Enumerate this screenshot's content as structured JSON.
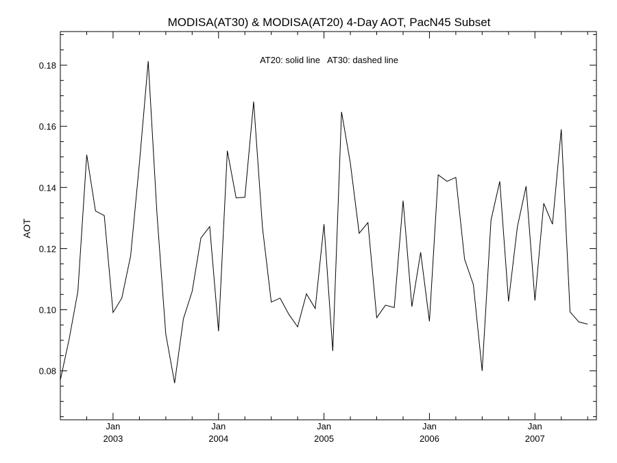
{
  "chart_data": {
    "type": "line",
    "title": "MODISA(AT30) & MODISA(AT20) 4-Day AOT, PacN45 Subset",
    "subtitle": "AT20: solid line   AT30: dashed line",
    "xlabel": "",
    "ylabel": "AOT",
    "xlim": [
      "2002-07-01",
      "2007-08-01"
    ],
    "ylim": [
      0.064,
      0.191
    ],
    "x_tick_labels": [
      {
        "month": "Jan",
        "year": "2003",
        "date": "2003-01-01"
      },
      {
        "month": "Jan",
        "year": "2004",
        "date": "2004-01-01"
      },
      {
        "month": "Jan",
        "year": "2005",
        "date": "2005-01-01"
      },
      {
        "month": "Jan",
        "year": "2006",
        "date": "2006-01-01"
      },
      {
        "month": "Jan",
        "year": "2007",
        "date": "2007-01-01"
      }
    ],
    "y_ticks": [
      0.08,
      0.1,
      0.12,
      0.14,
      0.16,
      0.18
    ],
    "y_tick_labels": [
      "0.08",
      "0.10",
      "0.12",
      "0.14",
      "0.16",
      "0.18"
    ],
    "grid": false,
    "series": [
      {
        "style": "solid",
        "color": "#000000",
        "points": [
          [
            "2002-07-01",
            0.077
          ],
          [
            "2002-08-01",
            0.0903
          ],
          [
            "2002-09-01",
            0.106
          ],
          [
            "2002-10-01",
            0.1507
          ],
          [
            "2002-11-01",
            0.1323
          ],
          [
            "2002-12-01",
            0.1308
          ],
          [
            "2003-01-01",
            0.0991
          ],
          [
            "2003-02-01",
            0.1038
          ],
          [
            "2003-03-01",
            0.1177
          ],
          [
            "2003-04-01",
            0.148
          ],
          [
            "2003-05-01",
            0.1813
          ],
          [
            "2003-06-01",
            0.1313
          ],
          [
            "2003-07-01",
            0.0921
          ],
          [
            "2003-08-01",
            0.076
          ],
          [
            "2003-09-01",
            0.097
          ],
          [
            "2003-10-01",
            0.106
          ],
          [
            "2003-11-01",
            0.1235
          ],
          [
            "2003-12-01",
            0.1272
          ],
          [
            "2004-01-01",
            0.093
          ],
          [
            "2004-02-01",
            0.152
          ],
          [
            "2004-03-01",
            0.1366
          ],
          [
            "2004-04-01",
            0.1368
          ],
          [
            "2004-05-01",
            0.1681
          ],
          [
            "2004-06-01",
            0.1268
          ],
          [
            "2004-07-01",
            0.1025
          ],
          [
            "2004-08-01",
            0.1038
          ],
          [
            "2004-09-01",
            0.0985
          ],
          [
            "2004-10-01",
            0.0944
          ],
          [
            "2004-11-01",
            0.1052
          ],
          [
            "2004-12-01",
            0.1004
          ],
          [
            "2005-01-01",
            0.128
          ],
          [
            "2005-02-01",
            0.0865
          ],
          [
            "2005-03-01",
            0.1647
          ],
          [
            "2005-04-01",
            0.148
          ],
          [
            "2005-05-01",
            0.125
          ],
          [
            "2005-06-01",
            0.1285
          ],
          [
            "2005-07-01",
            0.0974
          ],
          [
            "2005-08-01",
            0.1015
          ],
          [
            "2005-09-01",
            0.1007
          ],
          [
            "2005-10-01",
            0.1357
          ],
          [
            "2005-11-01",
            0.101
          ],
          [
            "2005-12-01",
            0.1188
          ],
          [
            "2006-01-01",
            0.0962
          ],
          [
            "2006-02-01",
            0.1441
          ],
          [
            "2006-03-01",
            0.142
          ],
          [
            "2006-04-01",
            0.1433
          ],
          [
            "2006-05-01",
            0.1165
          ],
          [
            "2006-06-01",
            0.1082
          ],
          [
            "2006-07-01",
            0.08
          ],
          [
            "2006-08-01",
            0.1293
          ],
          [
            "2006-09-01",
            0.142
          ],
          [
            "2006-10-01",
            0.1027
          ],
          [
            "2006-11-01",
            0.127
          ],
          [
            "2006-12-01",
            0.1404
          ],
          [
            "2007-01-01",
            0.103
          ],
          [
            "2007-02-01",
            0.1348
          ],
          [
            "2007-03-01",
            0.128
          ],
          [
            "2007-04-01",
            0.159
          ],
          [
            "2007-05-01",
            0.0993
          ],
          [
            "2007-06-01",
            0.096
          ],
          [
            "2007-07-01",
            0.0953
          ]
        ]
      }
    ]
  }
}
